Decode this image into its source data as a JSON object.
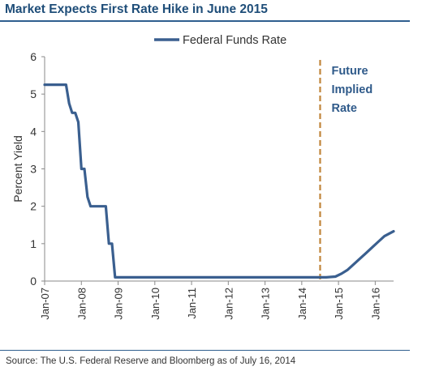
{
  "header": {
    "title": "Market Expects First Rate Hike in June 2015"
  },
  "footer": {
    "source": "Source: The U.S. Federal Reserve and Bloomberg as of July 16, 2014"
  },
  "colors": {
    "series": "#3a5f8f",
    "marker": "#c0853a",
    "title": "#1f4e79",
    "annotation": "#2f5a8a"
  },
  "chart_data": {
    "type": "line",
    "title": "Market Expects First Rate Hike in June 2015",
    "xlabel": "",
    "ylabel": "Percent Yield",
    "ylim": [
      0,
      6
    ],
    "xlim": [
      "2007-01",
      "2016-07"
    ],
    "yticks": [
      "0",
      "1",
      "2",
      "3",
      "4",
      "5",
      "6"
    ],
    "xticks": [
      "Jan-07",
      "Jan-08",
      "Jan-09",
      "Jan-10",
      "Jan-11",
      "Jan-12",
      "Jan-13",
      "Jan-14",
      "Jan-15",
      "Jan-16"
    ],
    "grid": false,
    "legend": "top-center",
    "annotation": {
      "x": "2014-07",
      "lines": [
        "Future",
        "Implied",
        "Rate"
      ],
      "style": "dashed-vertical"
    },
    "series": [
      {
        "name": "Federal Funds Rate",
        "points": [
          [
            "2007-01",
            5.25
          ],
          [
            "2007-08",
            5.25
          ],
          [
            "2007-09",
            4.75
          ],
          [
            "2007-10",
            4.5
          ],
          [
            "2007-11",
            4.5
          ],
          [
            "2007-12",
            4.25
          ],
          [
            "2008-01",
            3.0
          ],
          [
            "2008-02",
            3.0
          ],
          [
            "2008-03",
            2.25
          ],
          [
            "2008-04",
            2.0
          ],
          [
            "2008-09",
            2.0
          ],
          [
            "2008-10",
            1.0
          ],
          [
            "2008-11",
            1.0
          ],
          [
            "2008-12",
            0.1
          ],
          [
            "2014-07",
            0.1
          ],
          [
            "2014-09",
            0.1
          ],
          [
            "2014-12",
            0.12
          ],
          [
            "2015-02",
            0.2
          ],
          [
            "2015-04",
            0.3
          ],
          [
            "2015-06",
            0.45
          ],
          [
            "2015-08",
            0.6
          ],
          [
            "2015-10",
            0.75
          ],
          [
            "2015-12",
            0.9
          ],
          [
            "2016-02",
            1.05
          ],
          [
            "2016-04",
            1.2
          ],
          [
            "2016-07",
            1.33
          ]
        ]
      }
    ]
  }
}
